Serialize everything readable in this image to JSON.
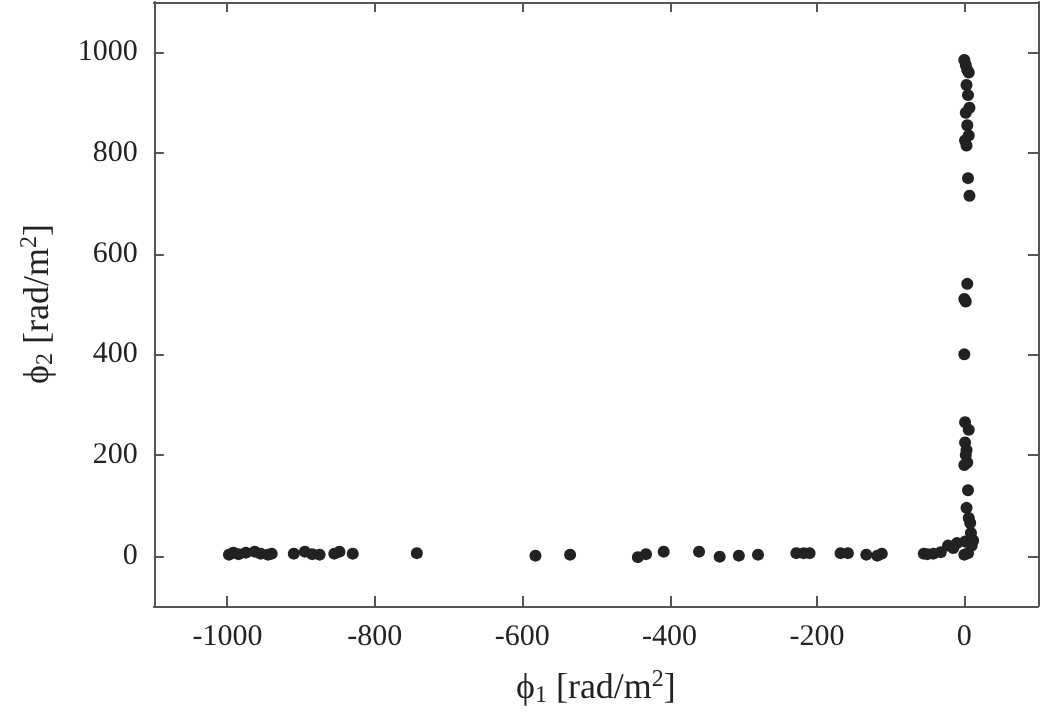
{
  "chart_data": {
    "type": "scatter",
    "xlabel": "ϕ$_{1}$ [rad/m$^{2}$]",
    "ylabel": "ϕ$_{2}$ [rad/m$^{2}$]",
    "xlim": [
      -1100,
      100
    ],
    "xticks": [
      -1000,
      -800,
      -600,
      -400,
      -200,
      0
    ],
    "ylim": [
      -100,
      1100
    ],
    "yticks": [
      0,
      200,
      400,
      600,
      800,
      1000
    ],
    "grid": false,
    "marker": "circle",
    "series": [
      {
        "color": "#222222",
        "x": [
          -998,
          -992,
          -985,
          -975,
          -963,
          -955,
          -945,
          -940,
          -910,
          -895,
          -885,
          -875,
          -855,
          -848,
          -830,
          -743,
          -582,
          -535,
          -443,
          -432,
          -408,
          -360,
          -332,
          -306,
          -280,
          -228,
          -218,
          -210,
          -168,
          -158,
          -133,
          -118,
          -112,
          -55,
          -50,
          -42,
          -32,
          -22,
          -15,
          -10,
          0,
          2,
          4,
          6,
          3,
          5,
          7,
          2,
          4,
          6,
          1,
          3,
          5,
          7,
          4,
          0,
          2,
          0,
          1,
          6,
          1,
          3,
          2,
          4,
          0,
          5,
          3,
          6,
          8,
          9,
          12,
          10,
          5,
          0,
          1
        ],
        "values": [
          2,
          6,
          3,
          6,
          8,
          4,
          2,
          4,
          4,
          8,
          3,
          2,
          4,
          8,
          4,
          5,
          0,
          2,
          -3,
          3,
          8,
          8,
          -2,
          0,
          2,
          5,
          5,
          5,
          5,
          5,
          2,
          0,
          4,
          4,
          3,
          4,
          7,
          20,
          15,
          25,
          985,
          975,
          965,
          960,
          935,
          915,
          890,
          880,
          855,
          835,
          825,
          815,
          750,
          715,
          540,
          510,
          505,
          400,
          265,
          250,
          225,
          210,
          200,
          185,
          180,
          130,
          95,
          75,
          65,
          45,
          30,
          20,
          5,
          2,
          28
        ]
      }
    ]
  }
}
